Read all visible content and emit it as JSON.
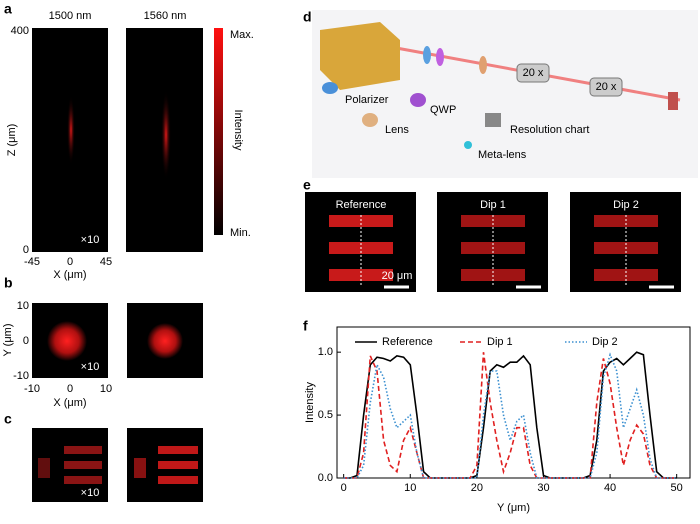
{
  "panel_a": {
    "label": "a",
    "columns": [
      "1500 nm",
      "1560 nm"
    ],
    "z_ticks": [
      "400",
      "0"
    ],
    "z_axis": "Z (μm)",
    "x_ticks": [
      "-45",
      "0",
      "45"
    ],
    "x_axis": "X (μm)",
    "factor": "×10",
    "colorbar": {
      "max": "Max.",
      "min": "Min.",
      "title": "Intensity"
    }
  },
  "panel_b": {
    "label": "b",
    "y_ticks": [
      "10",
      "0",
      "-10"
    ],
    "y_axis": "Y (μm)",
    "x_ticks": [
      "-10",
      "0",
      "10"
    ],
    "x_axis": "X (μm)",
    "factor": "×10"
  },
  "panel_c": {
    "label": "c",
    "factor": "×10"
  },
  "panel_d": {
    "label": "d",
    "objective": "20 x",
    "legend": [
      "Polarizer",
      "QWP",
      "Lens",
      "Resolution chart",
      "Meta-lens"
    ]
  },
  "panel_e": {
    "label": "e",
    "titles": [
      "Reference",
      "Dip 1",
      "Dip 2"
    ],
    "scale_bar": "20 μm"
  },
  "panel_f": {
    "label": "f"
  },
  "chart_data": {
    "type": "line",
    "xlabel": "Y (μm)",
    "ylabel": "Intensity",
    "x": [
      0,
      1,
      2,
      3,
      4,
      5,
      6,
      7,
      8,
      9,
      10,
      11,
      12,
      13,
      14,
      15,
      16,
      17,
      18,
      19,
      20,
      21,
      22,
      23,
      24,
      25,
      26,
      27,
      28,
      29,
      30,
      31,
      32,
      33,
      34,
      35,
      36,
      37,
      38,
      39,
      40,
      41,
      42,
      43,
      44,
      45,
      46,
      47,
      48,
      49,
      50
    ],
    "series": [
      {
        "name": "Reference",
        "color": "#000000",
        "style": "solid",
        "values": [
          0,
          0,
          0.02,
          0.5,
          0.9,
          0.96,
          0.95,
          0.93,
          0.97,
          0.96,
          0.9,
          0.5,
          0.05,
          0,
          0,
          0,
          0,
          0,
          0,
          0,
          0.02,
          0.4,
          0.85,
          0.9,
          0.88,
          0.92,
          0.92,
          0.97,
          0.9,
          0.4,
          0.02,
          0,
          0,
          0,
          0,
          0,
          0,
          0.02,
          0.3,
          0.85,
          0.92,
          0.95,
          0.9,
          0.95,
          1.0,
          0.98,
          0.5,
          0.05,
          0,
          0,
          0
        ]
      },
      {
        "name": "Dip 1",
        "color": "#e02020",
        "style": "dashed",
        "values": [
          0,
          0,
          0,
          0.2,
          0.97,
          0.85,
          0.3,
          0.1,
          0.05,
          0.3,
          0.4,
          0.2,
          0,
          0,
          0,
          0,
          0,
          0,
          0,
          0,
          0.1,
          1.0,
          0.6,
          0.3,
          0.05,
          0.2,
          0.4,
          0.4,
          0.1,
          0,
          0,
          0,
          0,
          0,
          0,
          0,
          0,
          0,
          0.6,
          0.95,
          0.75,
          0.4,
          0.1,
          0.3,
          0.42,
          0.35,
          0.1,
          0,
          0,
          0,
          0
        ]
      },
      {
        "name": "Dip 2",
        "color": "#3a8fd0",
        "style": "dotted",
        "values": [
          0,
          0,
          0,
          0.1,
          0.6,
          0.9,
          0.8,
          0.55,
          0.4,
          0.45,
          0.5,
          0.2,
          0,
          0,
          0,
          0,
          0,
          0,
          0,
          0,
          0,
          0.5,
          0.85,
          0.85,
          0.5,
          0.3,
          0.45,
          0.5,
          0.2,
          0,
          0,
          0,
          0,
          0,
          0,
          0,
          0,
          0,
          0.2,
          0.8,
          0.98,
          0.85,
          0.4,
          0.55,
          0.7,
          0.5,
          0.15,
          0,
          0,
          0,
          0
        ]
      }
    ],
    "xlim": [
      -1,
      52
    ],
    "xticks": [
      0,
      10,
      20,
      30,
      40,
      50
    ],
    "ylim": [
      0,
      1.2
    ],
    "yticks": [
      {
        "value": 0,
        "label": "0.0"
      },
      {
        "value": 0.5,
        "label": "0.5"
      },
      {
        "value": 1,
        "label": "1.0"
      }
    ],
    "legend": "top"
  }
}
